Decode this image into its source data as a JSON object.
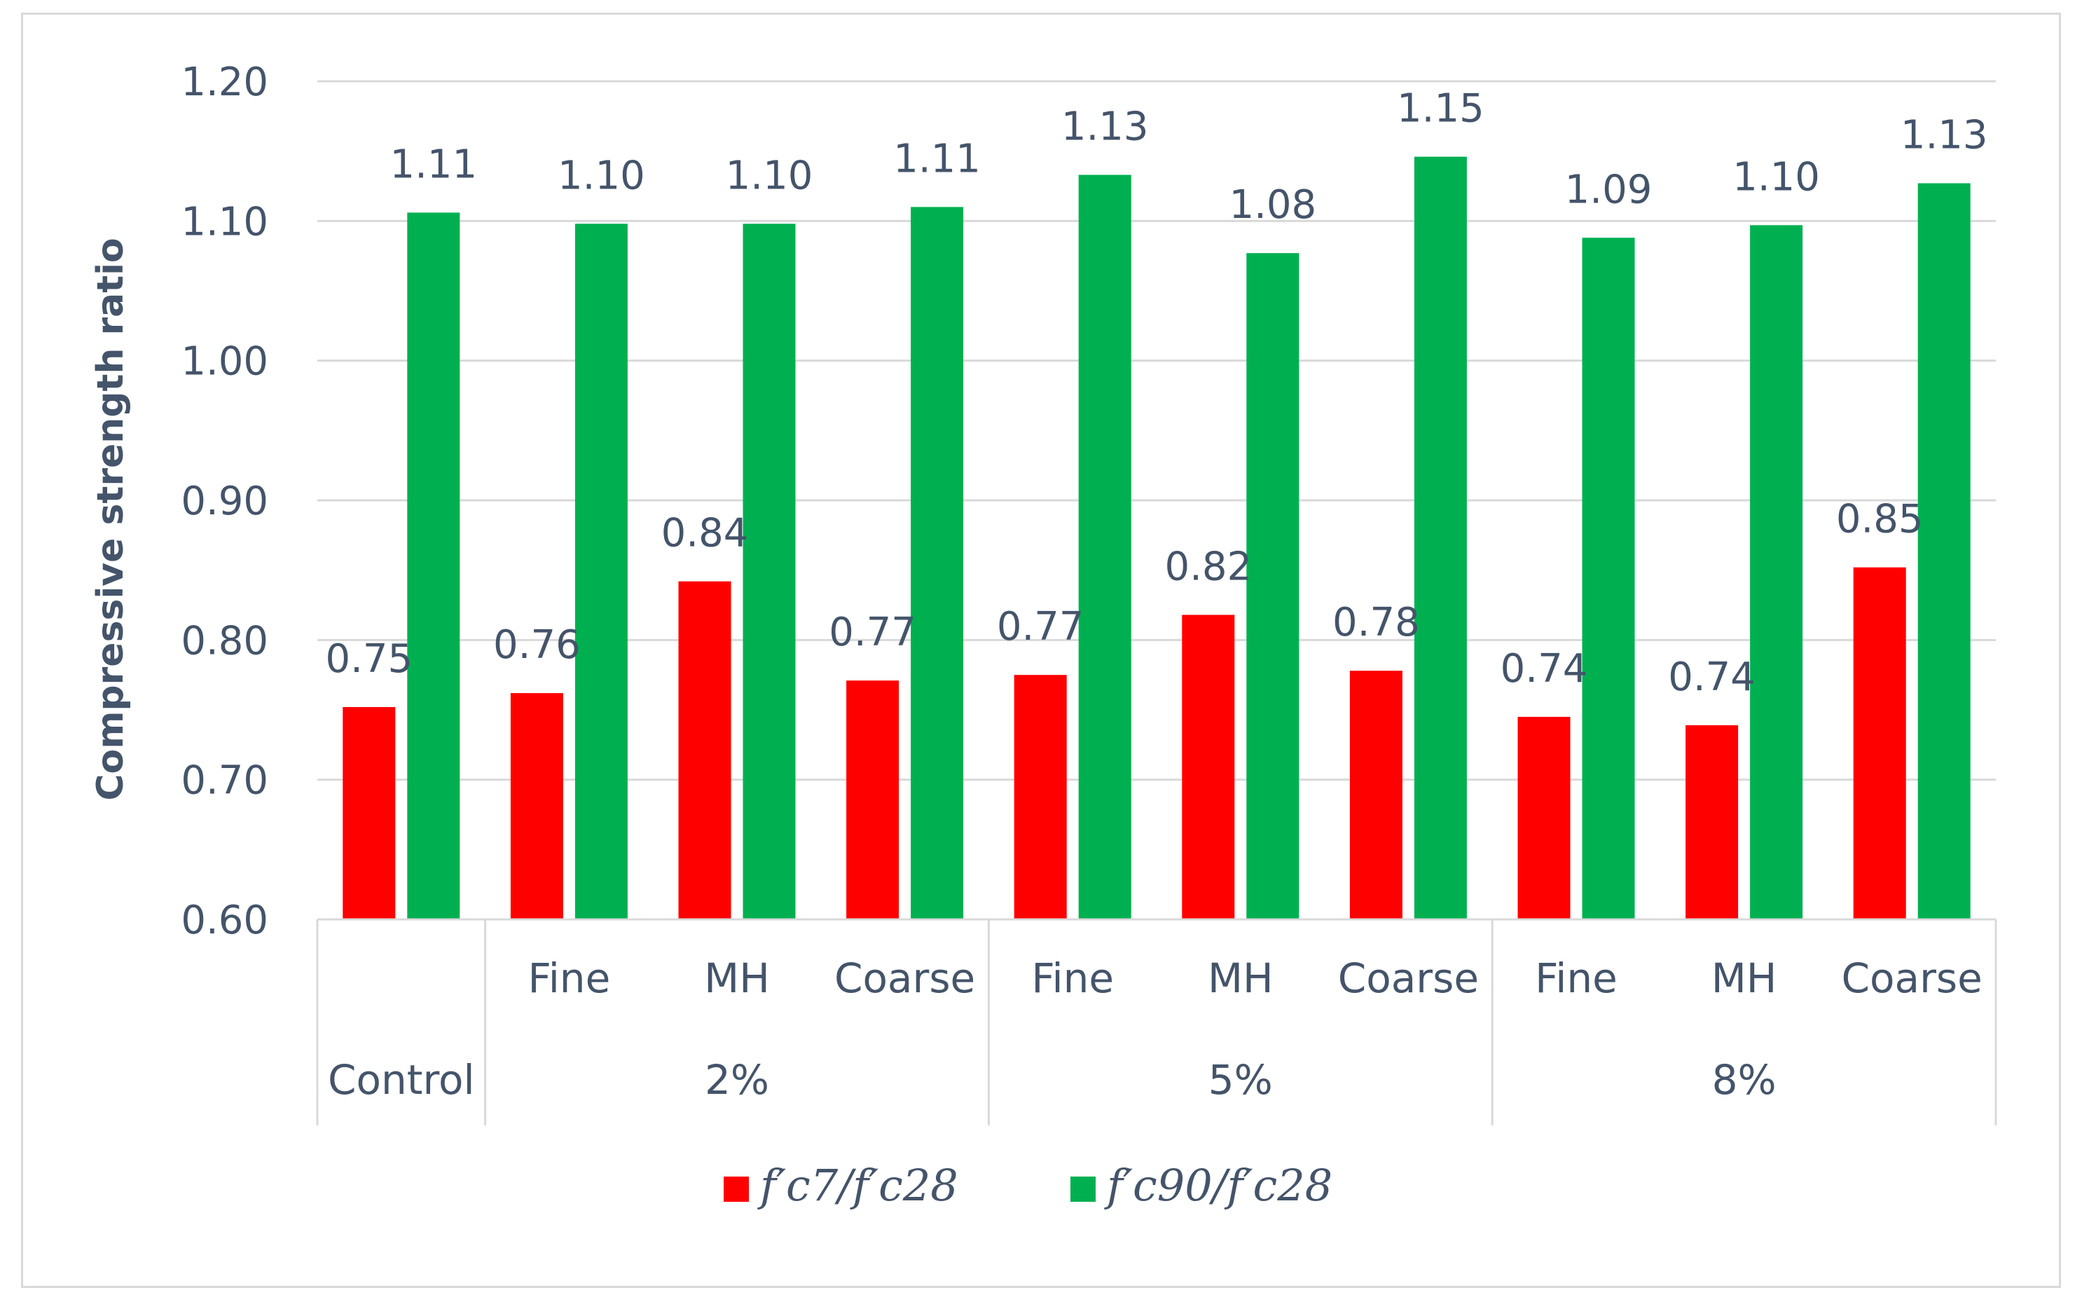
{
  "chart_data": {
    "type": "bar",
    "ylabel": "Compressive strength ratio",
    "ylim": [
      0.6,
      1.2
    ],
    "yticks": [
      "0.60",
      "0.70",
      "0.80",
      "0.90",
      "1.00",
      "1.10",
      "1.20"
    ],
    "grid": true,
    "legend_position": "bottom",
    "categories": [
      "",
      "Fine",
      "MH",
      "Coarse",
      "Fine",
      "MH",
      "Coarse",
      "Fine",
      "MH",
      "Coarse"
    ],
    "groups": [
      {
        "label": "Control",
        "count": 1
      },
      {
        "label": "2%",
        "count": 3
      },
      {
        "label": "5%",
        "count": 3
      },
      {
        "label": "8%",
        "count": 3
      }
    ],
    "series": [
      {
        "name": "f′c7/f′c28",
        "color": "#ff0000",
        "values": [
          0.752,
          0.762,
          0.842,
          0.771,
          0.775,
          0.818,
          0.778,
          0.745,
          0.739,
          0.852
        ],
        "labels": [
          "0.75",
          "0.76",
          "0.84",
          "0.77",
          "0.77",
          "0.82",
          "0.78",
          "0.74",
          "0.74",
          "0.85"
        ]
      },
      {
        "name": "f′c90/f′c28",
        "color": "#00b050",
        "values": [
          1.106,
          1.098,
          1.098,
          1.11,
          1.133,
          1.077,
          1.146,
          1.088,
          1.097,
          1.127
        ],
        "labels": [
          "1.11",
          "1.10",
          "1.10",
          "1.11",
          "1.13",
          "1.08",
          "1.15",
          "1.09",
          "1.10",
          "1.13"
        ]
      }
    ]
  },
  "colors": {
    "grid": "#d9d9d9",
    "text": "#44546a"
  }
}
